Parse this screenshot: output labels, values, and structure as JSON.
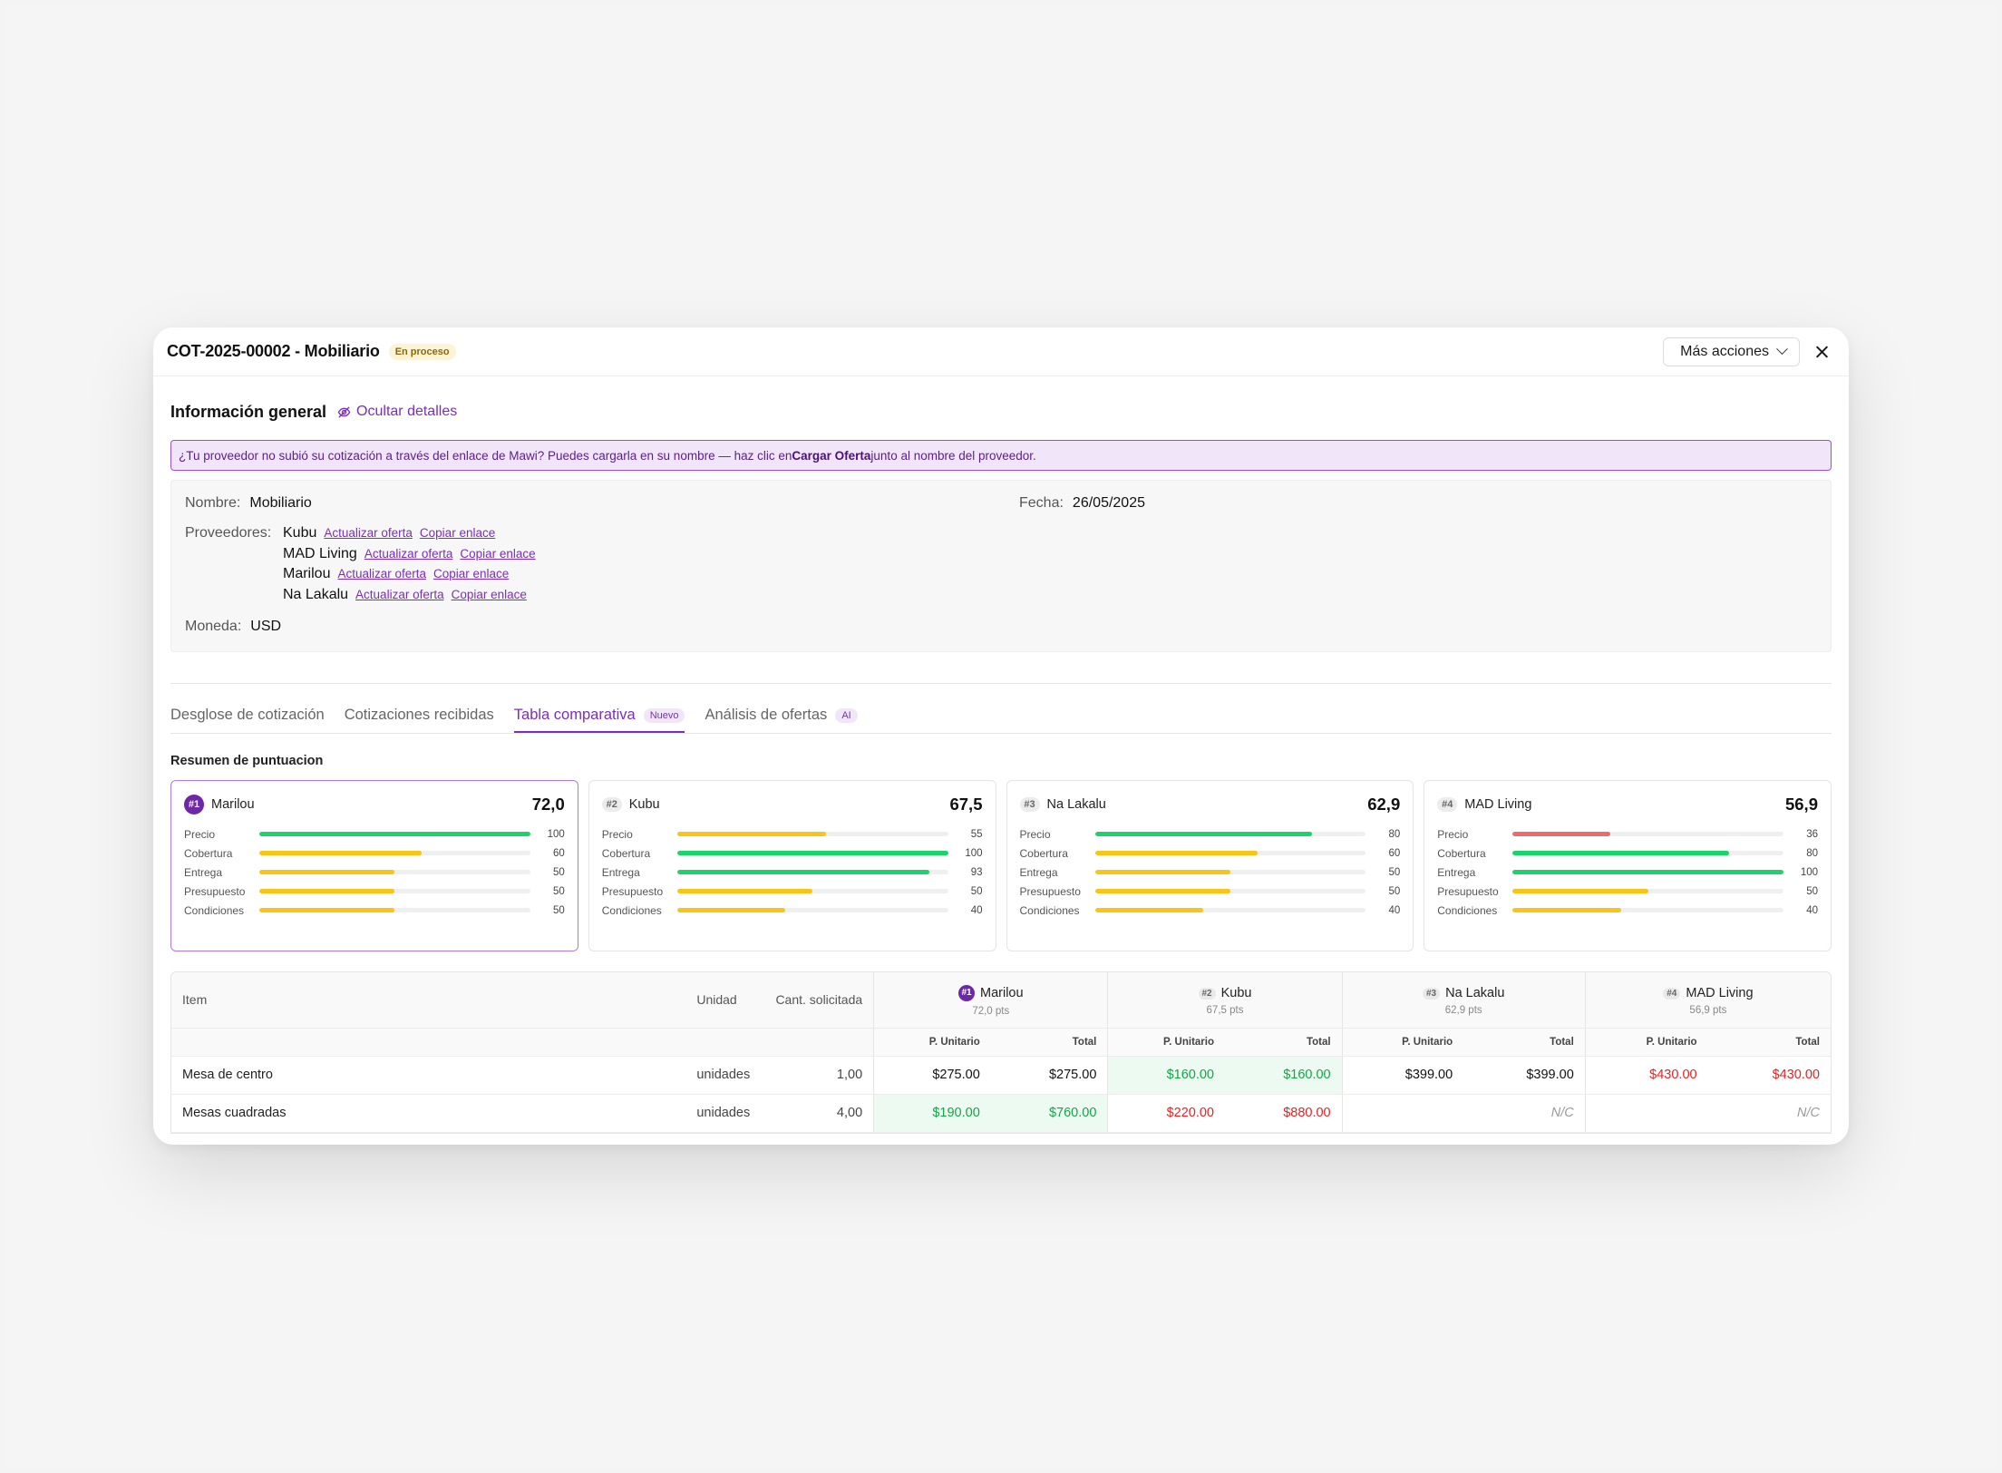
{
  "header": {
    "title": "COT-2025-00002 - Mobiliario",
    "status": "En proceso",
    "more_actions": "Más acciones"
  },
  "general": {
    "title": "Información general",
    "hide_label": "Ocultar detalles",
    "banner_pre": "¿Tu proveedor no subió su cotización a través del enlace de Mawi? Puedes cargarla en su nombre — haz clic en ",
    "banner_bold": "Cargar Oferta",
    "banner_post": " junto al nombre del proveedor.",
    "name_label": "Nombre:",
    "name_value": "Mobiliario",
    "date_label": "Fecha:",
    "date_value": "26/05/2025",
    "providers_label": "Proveedores:",
    "providers": [
      {
        "name": "Kubu",
        "update": "Actualizar oferta",
        "copy": "Copiar enlace"
      },
      {
        "name": "MAD Living",
        "update": "Actualizar oferta",
        "copy": "Copiar enlace"
      },
      {
        "name": "Marilou",
        "update": "Actualizar oferta",
        "copy": "Copiar enlace"
      },
      {
        "name": "Na Lakalu",
        "update": "Actualizar oferta",
        "copy": "Copiar enlace"
      }
    ],
    "currency_label": "Moneda:",
    "currency_value": "USD"
  },
  "tabs": [
    {
      "label": "Desglose de cotización",
      "badge": ""
    },
    {
      "label": "Cotizaciones recibidas",
      "badge": ""
    },
    {
      "label": "Tabla comparativa",
      "badge": "Nuevo"
    },
    {
      "label": "Análisis de ofertas",
      "badge": "AI"
    }
  ],
  "active_tab": 2,
  "summary": {
    "title": "Resumen de puntuacion",
    "metric_labels": [
      "Precio",
      "Cobertura",
      "Entrega",
      "Presupuesto",
      "Condiciones"
    ],
    "colors": {
      "green": "#1bd36b",
      "yellow": "#f8c415",
      "red": "#ef6b6b",
      "purple": "#6d28a8"
    },
    "cards": [
      {
        "rank": "#1",
        "name": "Marilou",
        "score": "72,0",
        "values": [
          100,
          60,
          50,
          50,
          50
        ],
        "colors": [
          "green",
          "yellow",
          "yellow",
          "yellow",
          "yellow"
        ]
      },
      {
        "rank": "#2",
        "name": "Kubu",
        "score": "67,5",
        "values": [
          55,
          100,
          93,
          50,
          40
        ],
        "colors": [
          "yellow",
          "green",
          "green",
          "yellow",
          "yellow"
        ]
      },
      {
        "rank": "#3",
        "name": "Na Lakalu",
        "score": "62,9",
        "values": [
          80,
          60,
          50,
          50,
          40
        ],
        "colors": [
          "green",
          "yellow",
          "yellow",
          "yellow",
          "yellow"
        ]
      },
      {
        "rank": "#4",
        "name": "MAD Living",
        "score": "56,9",
        "values": [
          36,
          80,
          100,
          50,
          40
        ],
        "colors": [
          "red",
          "green",
          "green",
          "yellow",
          "yellow"
        ]
      }
    ]
  },
  "table": {
    "col_item": "Item",
    "col_unit": "Unidad",
    "col_qty": "Cant. solicitada",
    "sub_unit": "P. Unitario",
    "sub_total": "Total",
    "vendors": [
      {
        "rank": "#1",
        "name": "Marilou",
        "pts": "72,0 pts"
      },
      {
        "rank": "#2",
        "name": "Kubu",
        "pts": "67,5 pts"
      },
      {
        "rank": "#3",
        "name": "Na Lakalu",
        "pts": "62,9 pts"
      },
      {
        "rank": "#4",
        "name": "MAD Living",
        "pts": "56,9 pts"
      }
    ],
    "rows": [
      {
        "item": "Mesa de centro",
        "unit": "unidades",
        "qty": "1,00",
        "cells": [
          {
            "u": "$275.00",
            "t": "$275.00",
            "s": "black"
          },
          {
            "u": "$160.00",
            "t": "$160.00",
            "s": "green"
          },
          {
            "u": "$399.00",
            "t": "$399.00",
            "s": "black"
          },
          {
            "u": "$430.00",
            "t": "$430.00",
            "s": "red"
          }
        ]
      },
      {
        "item": "Mesas cuadradas",
        "unit": "unidades",
        "qty": "4,00",
        "cells": [
          {
            "u": "$190.00",
            "t": "$760.00",
            "s": "green"
          },
          {
            "u": "$220.00",
            "t": "$880.00",
            "s": "red"
          },
          {
            "u": "",
            "t": "N/C",
            "s": "na"
          },
          {
            "u": "",
            "t": "N/C",
            "s": "na"
          }
        ]
      }
    ]
  }
}
